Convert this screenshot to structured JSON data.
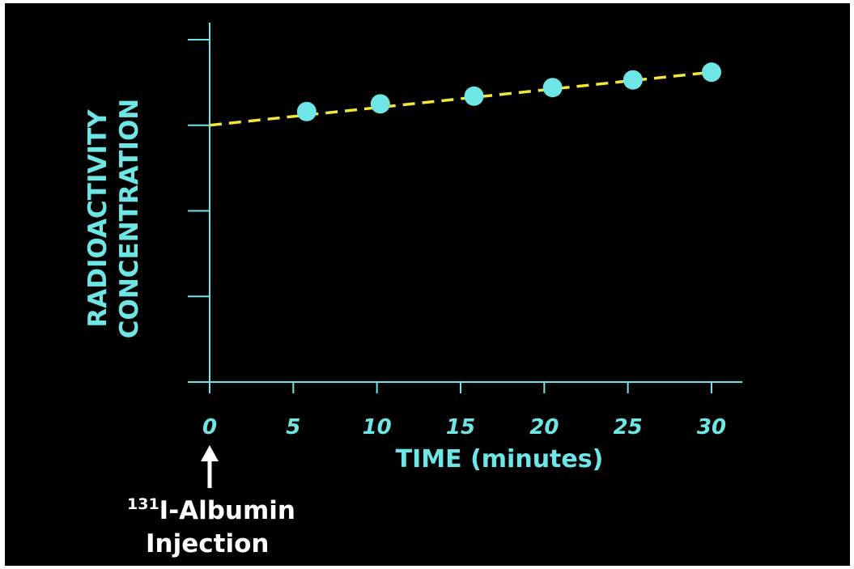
{
  "chart_data": {
    "type": "scatter",
    "xlabel": "TIME (minutes)",
    "ylabel_lines": [
      "RADIOACTIVITY",
      "CONCENTRATION"
    ],
    "x_ticks": [
      "0",
      "5",
      "10",
      "15",
      "20",
      "25",
      "30"
    ],
    "xlim": [
      0,
      30
    ],
    "ylim": [
      0,
      4
    ],
    "y_tick_count": 4,
    "series": [
      {
        "points": [
          {
            "x": 5.8,
            "y": 3.16
          },
          {
            "x": 10.2,
            "y": 3.25
          },
          {
            "x": 15.8,
            "y": 3.34
          },
          {
            "x": 20.5,
            "y": 3.44
          },
          {
            "x": 25.3,
            "y": 3.53
          },
          {
            "x": 30.0,
            "y": 3.62
          }
        ]
      }
    ],
    "trend_line": {
      "x": [
        0,
        30
      ],
      "y": [
        3.0,
        3.62
      ],
      "style": "dashed"
    },
    "colors": {
      "background": "#000000",
      "axis": "#6fe6e6",
      "points": "#6fe6e6",
      "trend_line": "#f2e63a",
      "annotation": "#ffffff"
    },
    "grid": false,
    "annotation": {
      "superscript": "131",
      "line1": "I-Albumin",
      "line2": "Injection",
      "arrow": "up-arrow"
    }
  }
}
